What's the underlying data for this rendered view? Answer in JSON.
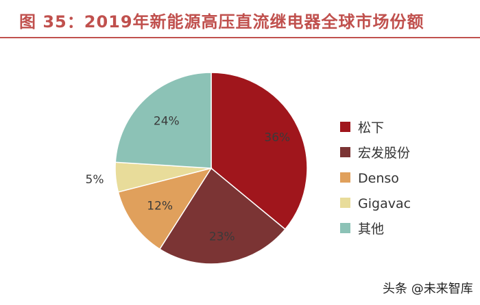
{
  "title": "图 35：2019年新能源高压直流继电器全球市场份额",
  "watermark": "头条 @未来智库",
  "chart_data": {
    "type": "pie",
    "title": "图 35：2019年新能源高压直流继电器全球市场份额",
    "start_angle_deg": 0,
    "direction": "clockwise",
    "legend_position": "right",
    "slices": [
      {
        "name": "松下",
        "value": 36,
        "label": "36%",
        "color": "#a0161c"
      },
      {
        "name": "宏发股份",
        "value": 23,
        "label": "23%",
        "color": "#7b3434"
      },
      {
        "name": "Denso",
        "value": 12,
        "label": "12%",
        "color": "#e0a05c"
      },
      {
        "name": "Gigavac",
        "value": 5,
        "label": "5%",
        "color": "#e8dc9a"
      },
      {
        "name": "其他",
        "value": 24,
        "label": "24%",
        "color": "#8cc2b6"
      }
    ]
  }
}
